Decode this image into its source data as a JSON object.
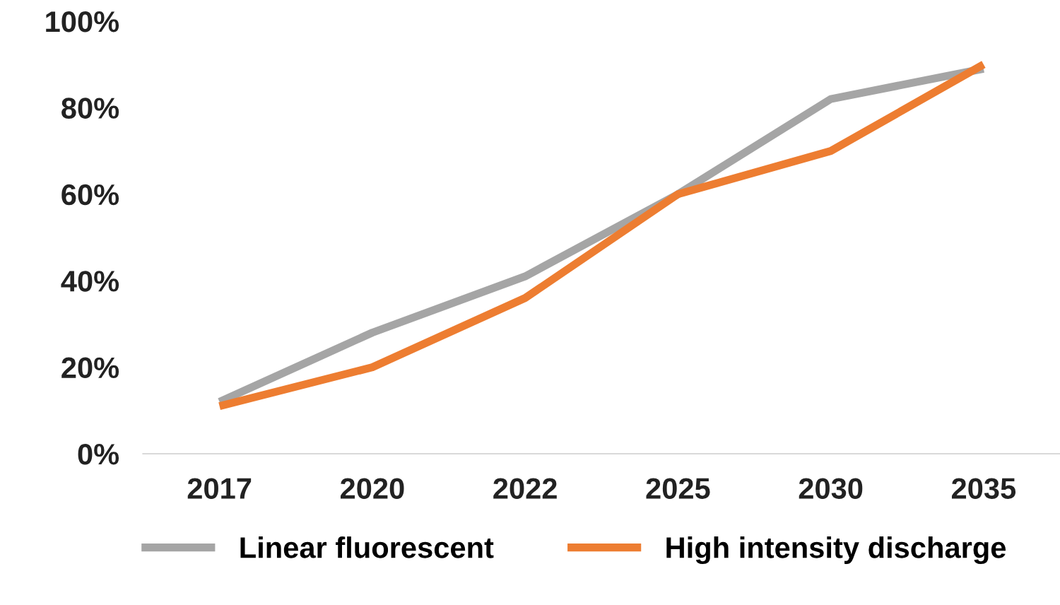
{
  "chart_data": {
    "type": "line",
    "categories": [
      "2017",
      "2020",
      "2022",
      "2025",
      "2030",
      "2035"
    ],
    "series": [
      {
        "name": "Linear fluorescent",
        "color": "#a5a5a5",
        "values": [
          12,
          28,
          41,
          60,
          82,
          89
        ]
      },
      {
        "name": "High intensity discharge",
        "color": "#ed7d31",
        "values": [
          11,
          20,
          36,
          60,
          70,
          90
        ]
      }
    ],
    "ylim": [
      0,
      100
    ],
    "yticks": [
      {
        "value": 0,
        "label": "0%"
      },
      {
        "value": 20,
        "label": "20%"
      },
      {
        "value": 40,
        "label": "40%"
      },
      {
        "value": 60,
        "label": "60%"
      },
      {
        "value": 80,
        "label": "80%"
      },
      {
        "value": 100,
        "label": "100%"
      }
    ],
    "grid": false,
    "legend": "bottom",
    "marker": "none",
    "line_style": "solid"
  }
}
